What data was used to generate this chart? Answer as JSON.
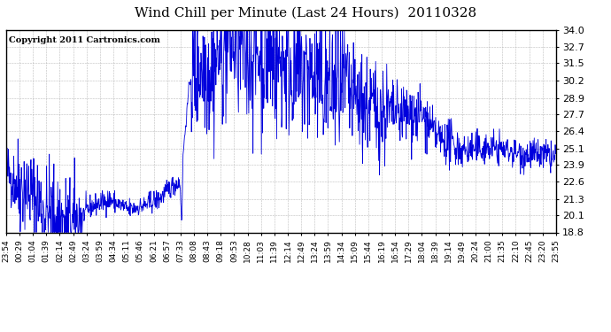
{
  "title": "Wind Chill per Minute (Last 24 Hours)  20110328",
  "copyright": "Copyright 2011 Cartronics.com",
  "ylim": [
    18.8,
    34.0
  ],
  "yticks": [
    18.8,
    20.1,
    21.3,
    22.6,
    23.9,
    25.1,
    26.4,
    27.7,
    28.9,
    30.2,
    31.5,
    32.7,
    34.0
  ],
  "line_color": "#0000dd",
  "bg_color": "#ffffff",
  "grid_color": "#aaaaaa",
  "title_color": "#000000",
  "copyright_color": "#000000",
  "title_fontsize": 11,
  "copyright_fontsize": 7,
  "xtick_fontsize": 6.5,
  "ytick_fontsize": 8,
  "x_labels": [
    "23:54",
    "00:29",
    "01:04",
    "01:39",
    "02:14",
    "02:49",
    "03:24",
    "03:59",
    "04:34",
    "05:11",
    "05:46",
    "06:21",
    "06:57",
    "07:33",
    "08:08",
    "08:43",
    "09:18",
    "09:53",
    "10:28",
    "11:03",
    "11:39",
    "12:14",
    "12:49",
    "13:24",
    "13:59",
    "14:34",
    "15:09",
    "15:44",
    "16:19",
    "16:54",
    "17:29",
    "18:04",
    "18:39",
    "19:14",
    "19:49",
    "20:24",
    "21:00",
    "21:35",
    "22:10",
    "22:45",
    "23:20",
    "23:55"
  ]
}
